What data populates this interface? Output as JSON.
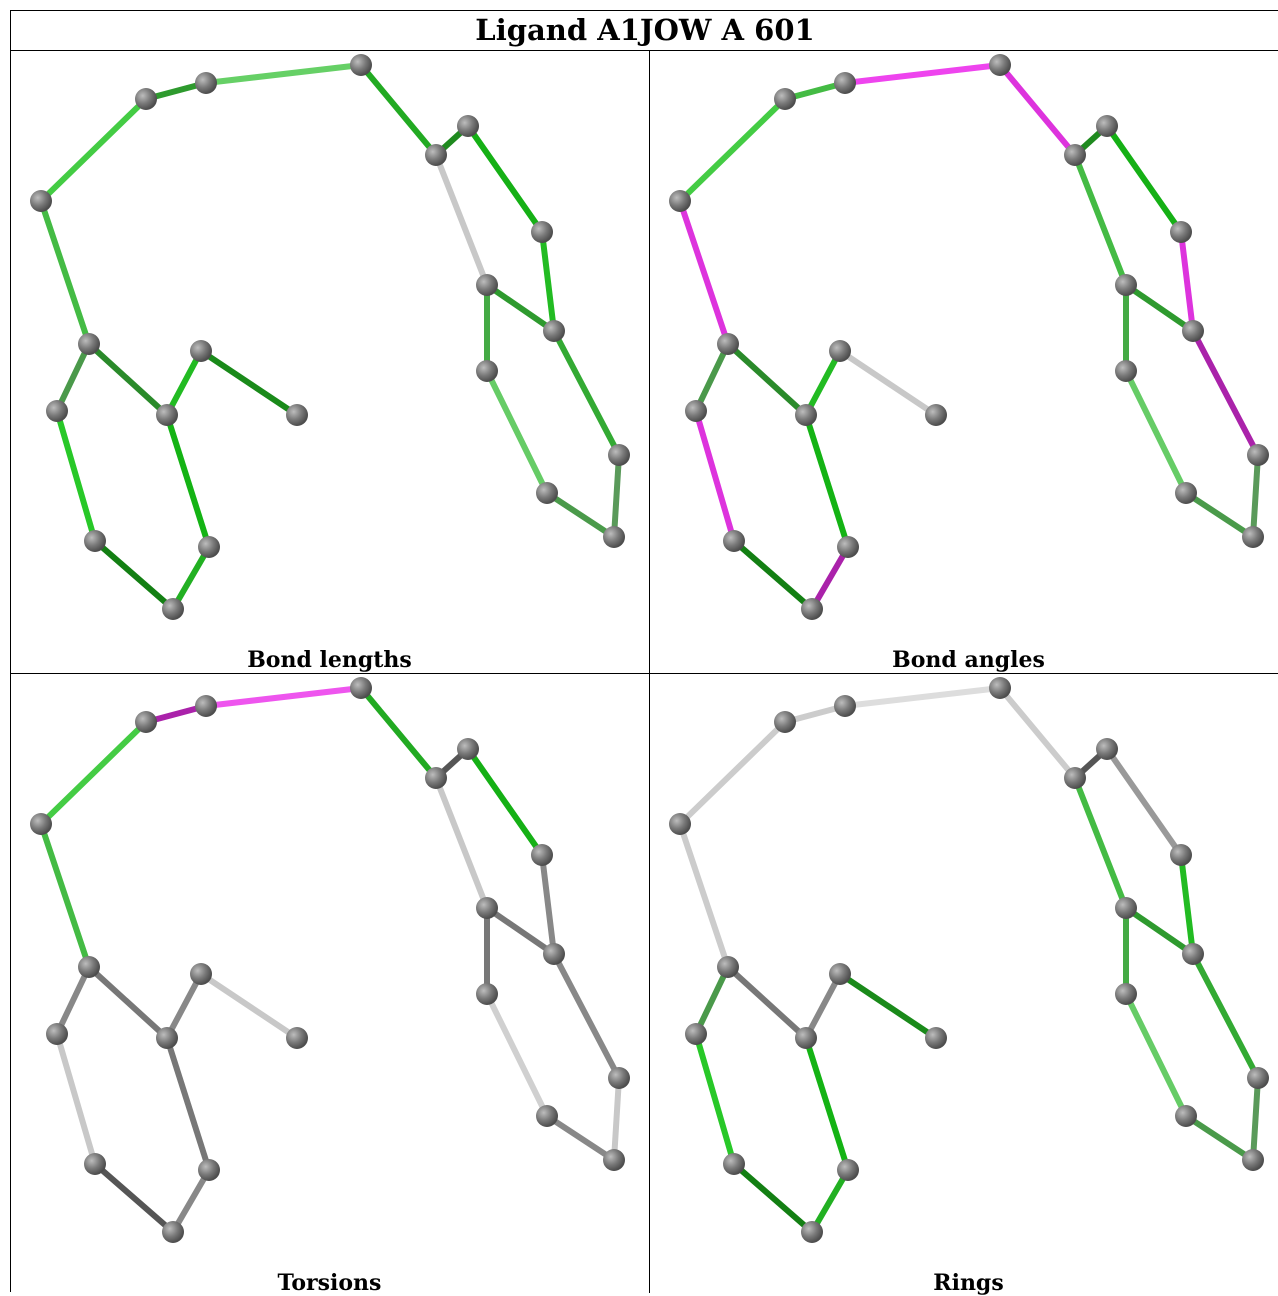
{
  "title": "Ligand A1JOW A 601",
  "panels": [
    {
      "caption": "Bond lengths",
      "bond_colors": [
        "#44cc44",
        "#2e9a2e",
        "#66d066",
        "#44bb44",
        "#1f8a1f",
        "#15b015",
        "#22aa22",
        "#c8c8c8",
        "#44aa44",
        "#66cc66",
        "#2e9a2e",
        "#22bb22",
        "#33aa33",
        "#5a9a5a",
        "#4a9a4a",
        "#4a994a",
        "#2a8a2a",
        "#22bb22",
        "#1a8a1a",
        "#14b314",
        "#28c828",
        "#137f13",
        "#22b022"
      ]
    },
    {
      "caption": "Bond angles",
      "bond_colors": [
        "#44cc44",
        "#44bb44",
        "#ee44ee",
        "#dd33dd",
        "#1f8a1f",
        "#15b015",
        "#dd33dd",
        "#44bb44",
        "#44aa44",
        "#66cc66",
        "#2e9a2e",
        "#dd33dd",
        "#aa22aa",
        "#5a9a5a",
        "#4a9a4a",
        "#4a994a",
        "#2a8a2a",
        "#22bb22",
        "#c8c8c8",
        "#14b314",
        "#dd33dd",
        "#137f13",
        "#aa22aa"
      ]
    },
    {
      "caption": "Torsions",
      "bond_colors": [
        "#44cc44",
        "#aa22aa",
        "#ee55ee",
        "#44bb44",
        "#555555",
        "#15b015",
        "#22aa22",
        "#c8c8c8",
        "#777777",
        "#d0d0d0",
        "#777777",
        "#888888",
        "#888888",
        "#c8c8c8",
        "#888888",
        "#888888",
        "#777777",
        "#888888",
        "#c8c8c8",
        "#777777",
        "#c8c8c8",
        "#555555",
        "#888888"
      ]
    },
    {
      "caption": "Rings",
      "bond_colors": [
        "#cccccc",
        "#cccccc",
        "#dddddd",
        "#cccccc",
        "#555555",
        "#999999",
        "#cccccc",
        "#44bb44",
        "#44aa44",
        "#66cc66",
        "#2e9a2e",
        "#22bb22",
        "#33aa33",
        "#5a9a5a",
        "#4a9a4a",
        "#4a994a",
        "#777777",
        "#888888",
        "#1a8a1a",
        "#14b314",
        "#28c828",
        "#137f13",
        "#22b022"
      ]
    }
  ]
}
